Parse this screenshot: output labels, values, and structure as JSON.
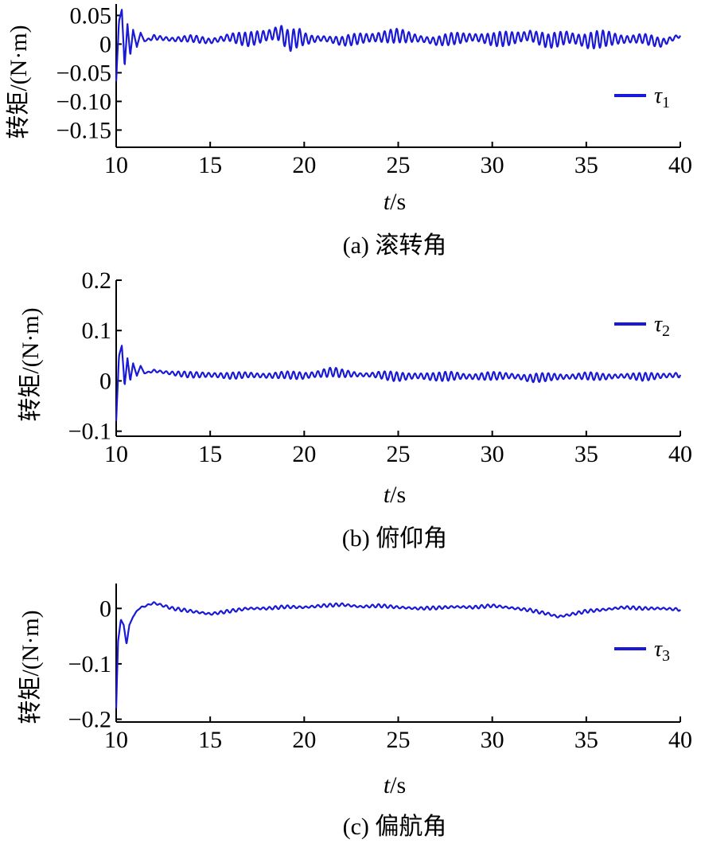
{
  "chart_data": [
    {
      "type": "line",
      "caption": "(a) 滚转角",
      "xlabel_var": "t",
      "xlabel_unit": "/s",
      "ylabel": "转矩/(N·m)",
      "xlim": [
        10,
        40
      ],
      "ylim": [
        -0.18,
        0.07
      ],
      "xticks": [
        10,
        15,
        20,
        25,
        30,
        35,
        40
      ],
      "yticks": [
        0.05,
        0,
        -0.05,
        -0.1,
        -0.15
      ],
      "ytick_labels": [
        "0.05",
        "0",
        "−0.05",
        "−0.10",
        "−0.15"
      ],
      "legend": {
        "symbol": "τ",
        "sub": "1",
        "position": "right"
      },
      "color": "#1a1ad6",
      "series": [
        {
          "x": [
            10.0,
            10.15,
            10.3,
            10.45,
            10.6,
            10.75,
            10.9,
            11.1,
            11.3,
            11.5,
            12,
            13,
            14,
            15,
            16,
            17,
            18,
            18.7,
            19.2,
            19.7,
            20.2,
            21,
            22,
            23,
            24,
            25,
            26,
            27,
            28,
            29,
            30,
            31,
            32,
            33,
            34,
            35,
            36,
            37,
            38,
            39,
            40
          ],
          "y": [
            -0.065,
            0.04,
            0.06,
            -0.04,
            0.035,
            -0.02,
            0.025,
            -0.005,
            0.02,
            0.005,
            0.012,
            0.008,
            0.01,
            0.005,
            0.012,
            0.008,
            0.015,
            0.02,
            0.005,
            0.012,
            0.008,
            0.01,
            0.005,
            0.01,
            0.012,
            0.015,
            0.01,
            0.005,
            0.01,
            0.012,
            0.008,
            0.01,
            0.015,
            0.005,
            0.012,
            0.005,
            0.01,
            0.008,
            0.01,
            0.002,
            0.015
          ],
          "amplitude": [
            0,
            0,
            0,
            0,
            0,
            0,
            0,
            0,
            0,
            0,
            0.005,
            0.006,
            0.006,
            0.006,
            0.01,
            0.012,
            0.016,
            0.022,
            0.02,
            0.016,
            0.01,
            0.008,
            0.008,
            0.012,
            0.014,
            0.012,
            0.01,
            0.009,
            0.011,
            0.012,
            0.012,
            0.014,
            0.016,
            0.012,
            0.016,
            0.018,
            0.014,
            0.012,
            0.01,
            0.008,
            0.006
          ]
        }
      ]
    },
    {
      "type": "line",
      "caption": "(b) 俯仰角",
      "xlabel_var": "t",
      "xlabel_unit": "/s",
      "ylabel": "转矩/(N·m)",
      "xlim": [
        10,
        40
      ],
      "ylim": [
        -0.11,
        0.2
      ],
      "xticks": [
        10,
        15,
        20,
        25,
        30,
        35,
        40
      ],
      "yticks": [
        0.2,
        0.1,
        0,
        -0.1
      ],
      "ytick_labels": [
        "0.2",
        "0.1",
        "0",
        "−0.1"
      ],
      "legend": {
        "symbol": "τ",
        "sub": "2",
        "position": "top-right"
      },
      "color": "#1a1ad6",
      "series": [
        {
          "x": [
            10.0,
            10.15,
            10.3,
            10.45,
            10.6,
            10.75,
            10.9,
            11.1,
            11.3,
            11.5,
            12,
            13,
            14,
            15,
            16,
            17,
            18,
            19,
            20,
            21,
            21.5,
            22,
            23,
            24,
            25,
            26,
            27,
            28,
            29,
            30,
            31,
            32,
            33,
            34,
            35,
            36,
            37,
            38,
            39,
            40
          ],
          "y": [
            -0.08,
            0.05,
            0.07,
            -0.01,
            0.045,
            0.0,
            0.035,
            0.01,
            0.03,
            0.015,
            0.02,
            0.015,
            0.012,
            0.012,
            0.01,
            0.012,
            0.01,
            0.012,
            0.01,
            0.015,
            0.018,
            0.015,
            0.012,
            0.012,
            0.008,
            0.01,
            0.008,
            0.01,
            0.008,
            0.01,
            0.01,
            0.005,
            0.008,
            0.008,
            0.01,
            0.008,
            0.01,
            0.008,
            0.01,
            0.012
          ],
          "amplitude": [
            0,
            0,
            0,
            0,
            0,
            0,
            0,
            0,
            0,
            0,
            0.004,
            0.005,
            0.006,
            0.008,
            0.007,
            0.006,
            0.008,
            0.007,
            0.009,
            0.012,
            0.01,
            0.008,
            0.006,
            0.008,
            0.01,
            0.01,
            0.008,
            0.011,
            0.008,
            0.008,
            0.008,
            0.01,
            0.008,
            0.008,
            0.008,
            0.007,
            0.007,
            0.008,
            0.007,
            0.008
          ]
        }
      ]
    },
    {
      "type": "line",
      "caption": "(c) 偏航角",
      "xlabel_var": "t",
      "xlabel_unit": "/s",
      "ylabel": "转矩/(N·m)",
      "xlim": [
        10,
        40
      ],
      "ylim": [
        -0.205,
        0.045
      ],
      "xticks": [
        10,
        15,
        20,
        25,
        30,
        35,
        40
      ],
      "yticks": [
        0,
        -0.1,
        -0.2
      ],
      "ytick_labels": [
        "0",
        "−0.1",
        "−0.2"
      ],
      "legend": {
        "symbol": "τ",
        "sub": "3",
        "position": "right"
      },
      "color": "#1a1ad6",
      "series": [
        {
          "x": [
            10.0,
            10.1,
            10.25,
            10.4,
            10.55,
            10.7,
            10.9,
            11.2,
            11.6,
            12.0,
            12.5,
            13,
            14,
            15,
            16,
            17,
            18,
            19,
            20,
            21,
            22,
            23,
            24,
            25,
            26,
            27,
            28,
            29,
            30,
            31,
            32,
            33,
            33.5,
            34,
            35,
            36,
            37,
            38,
            39,
            40
          ],
          "y": [
            -0.18,
            -0.06,
            -0.02,
            -0.03,
            -0.065,
            -0.03,
            -0.015,
            0.0,
            0.005,
            0.01,
            0.005,
            0.0,
            -0.005,
            -0.01,
            -0.005,
            0.0,
            0.0,
            0.003,
            0.002,
            0.005,
            0.007,
            0.003,
            0.005,
            0.002,
            0.0,
            0.001,
            0.003,
            0.002,
            0.005,
            0.001,
            -0.003,
            -0.01,
            -0.015,
            -0.012,
            -0.005,
            -0.002,
            0.002,
            0.0,
            0.0,
            -0.002
          ],
          "amplitude": [
            0,
            0,
            0,
            0,
            0,
            0,
            0,
            0.002,
            0.002,
            0.003,
            0.003,
            0.003,
            0.003,
            0.003,
            0.003,
            0.003,
            0.003,
            0.003,
            0.003,
            0.003,
            0.003,
            0.003,
            0.003,
            0.003,
            0.003,
            0.003,
            0.003,
            0.003,
            0.003,
            0.003,
            0.003,
            0.003,
            0.003,
            0.003,
            0.003,
            0.003,
            0.003,
            0.003,
            0.003,
            0.003
          ]
        }
      ]
    }
  ]
}
